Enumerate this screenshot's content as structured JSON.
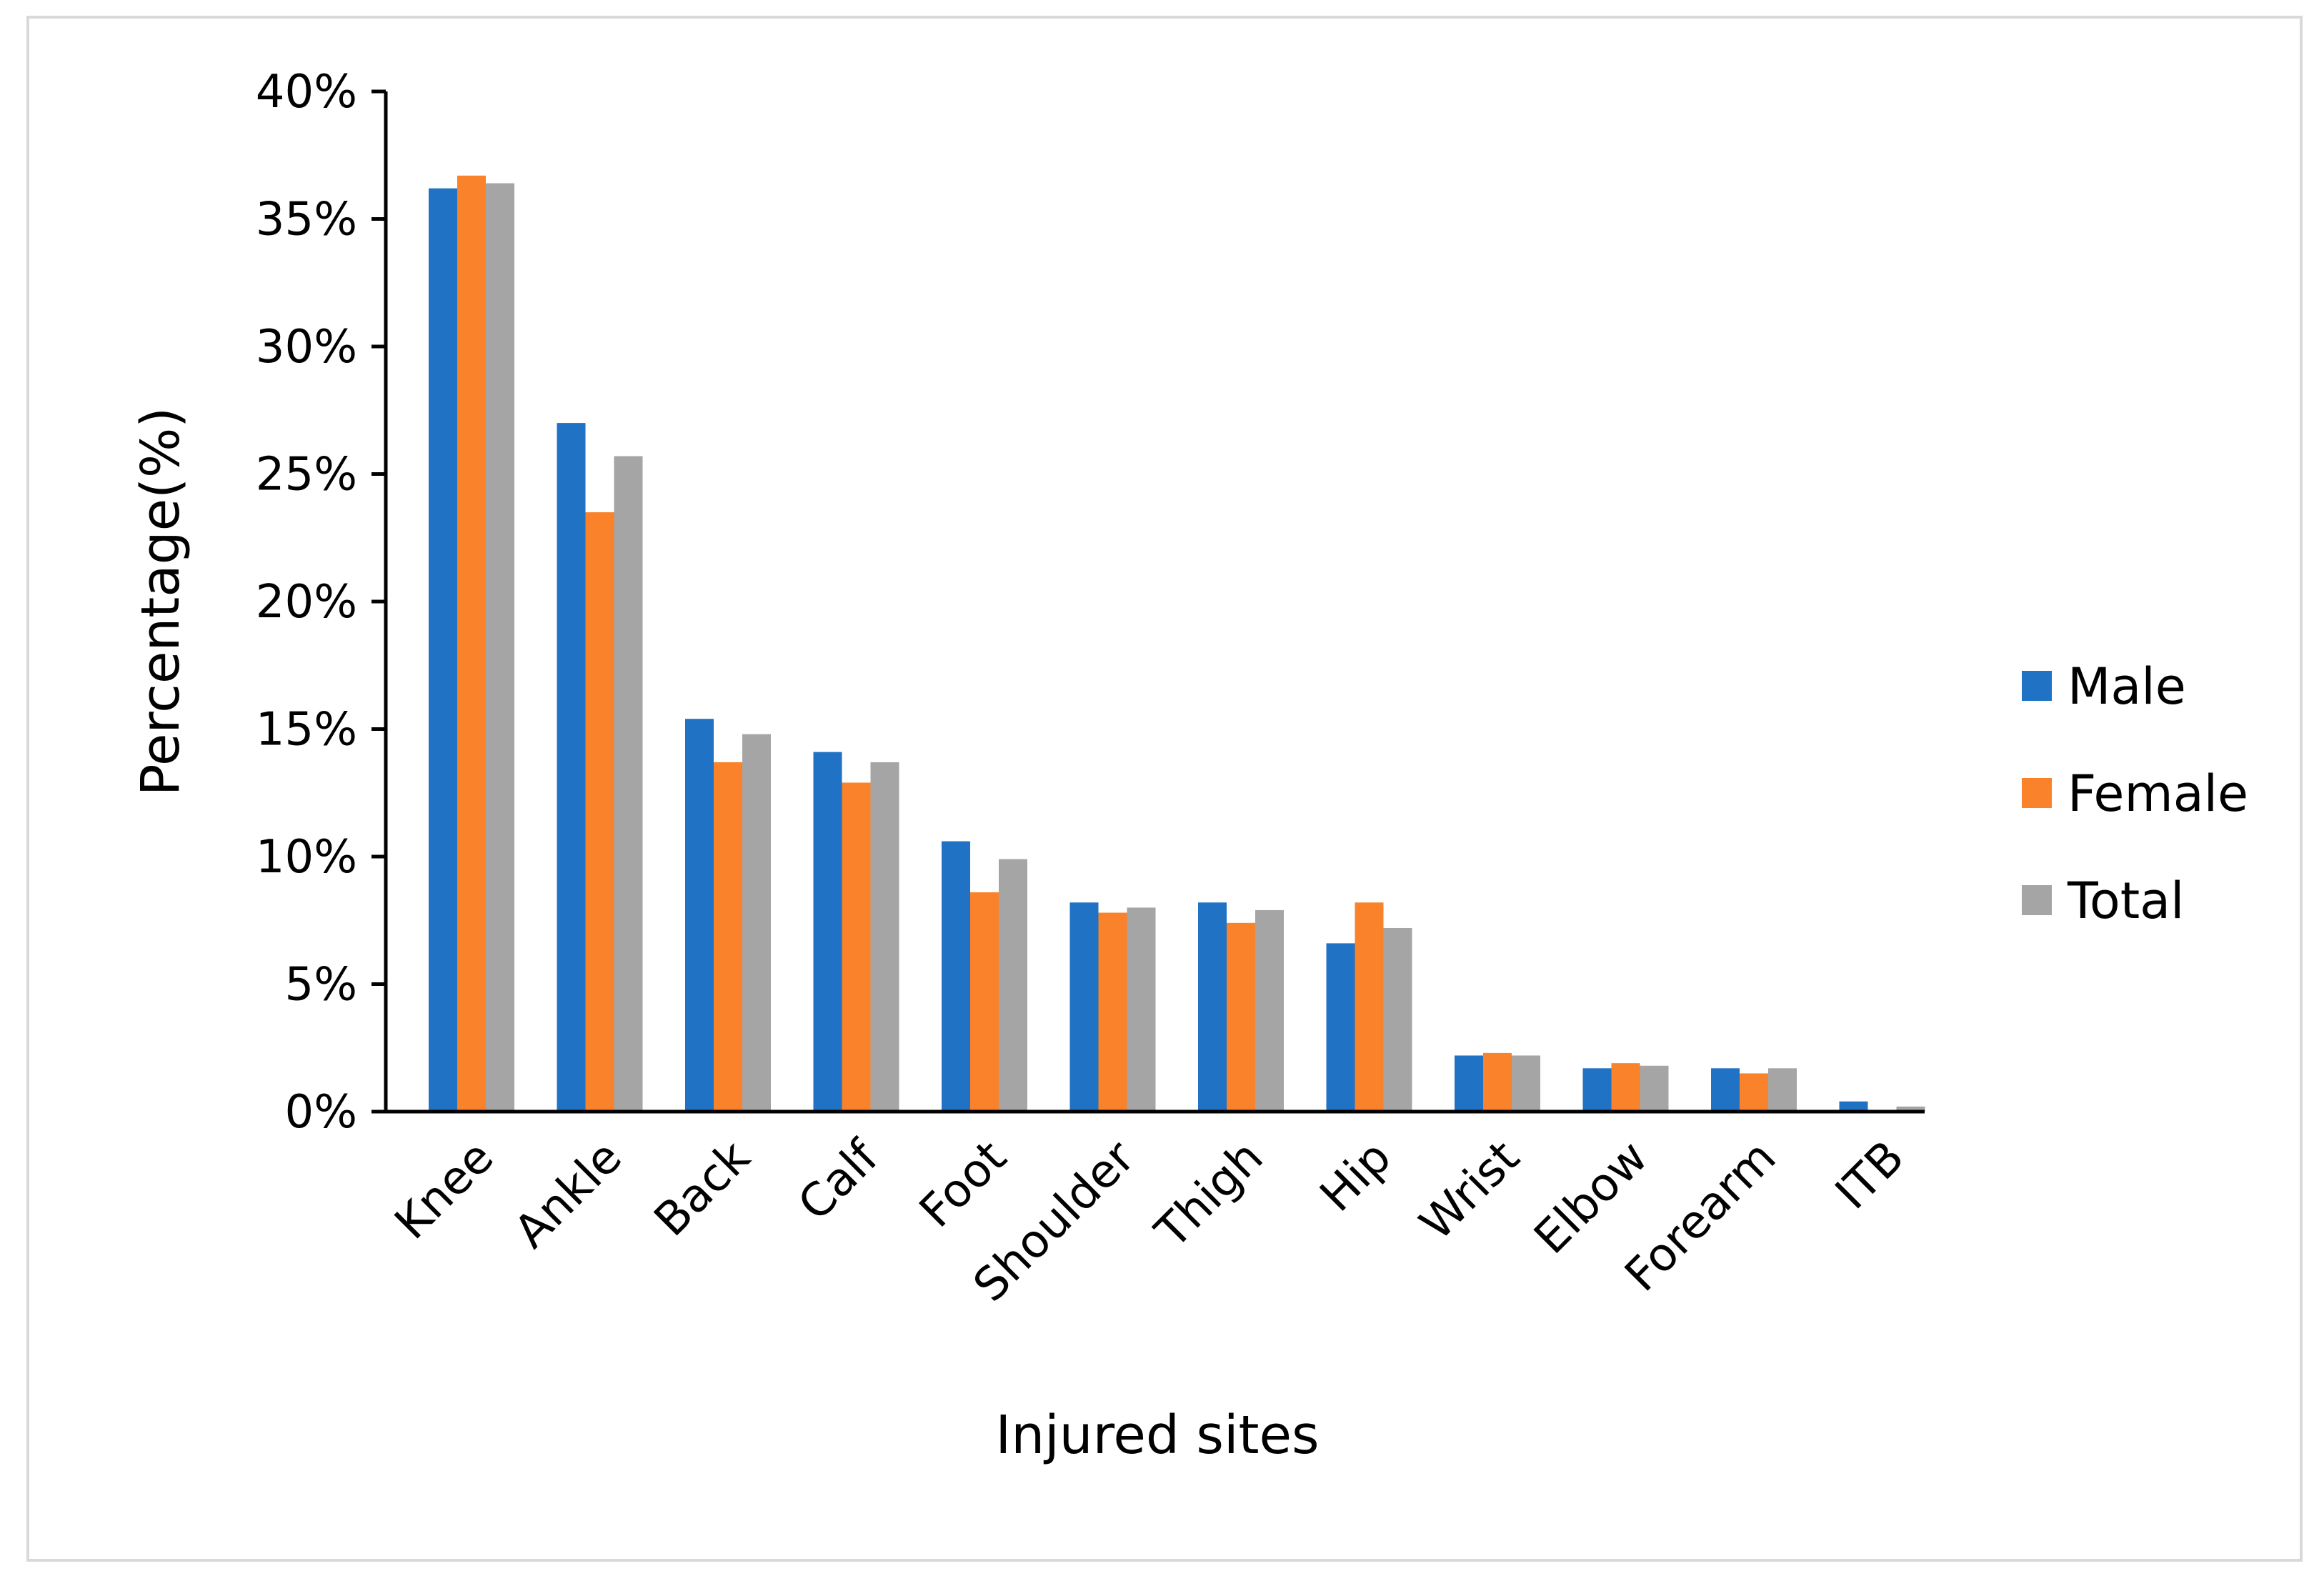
{
  "chart_data": {
    "type": "bar",
    "title": "",
    "xlabel": "Injured sites",
    "ylabel": "Percentage(%)",
    "ylim": [
      0,
      40
    ],
    "yticks": [
      0,
      5,
      10,
      15,
      20,
      25,
      30,
      35,
      40
    ],
    "ytick_format": "{v}%",
    "grid": false,
    "legend_position": "right",
    "categories": [
      "Knee",
      "Ankle",
      "Back",
      "Calf",
      "Foot",
      "Shoulder",
      "Thigh",
      "Hip",
      "Wrist",
      "Elbow",
      "Forearm",
      "ITB"
    ],
    "series": [
      {
        "name": "Male",
        "color": "#1f72c4",
        "values": [
          36.2,
          27.0,
          15.4,
          14.1,
          10.6,
          8.2,
          8.2,
          6.6,
          2.2,
          1.7,
          1.7,
          0.4
        ]
      },
      {
        "name": "Female",
        "color": "#f9822a",
        "values": [
          36.7,
          23.5,
          13.7,
          12.9,
          8.6,
          7.8,
          7.4,
          8.2,
          2.3,
          1.9,
          1.5,
          0.0
        ]
      },
      {
        "name": "Total",
        "color": "#a5a5a5",
        "values": [
          36.4,
          25.7,
          14.8,
          13.7,
          9.9,
          8.0,
          7.9,
          7.2,
          2.2,
          1.8,
          1.7,
          0.2
        ]
      }
    ]
  }
}
